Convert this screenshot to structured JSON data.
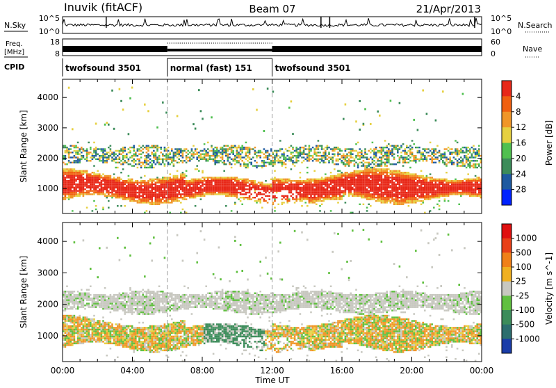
{
  "header": {
    "station": "Inuvik (fitACF)",
    "beam": "Beam 07",
    "date": "21/Apr/2013"
  },
  "top_panels": {
    "nsky_label": "N.Sky",
    "nsearch_label": "N.Search",
    "nsky_ticks_left": [
      "10^5",
      "10^0"
    ],
    "nsky_ticks_right": [
      "10^5",
      "10^0"
    ],
    "freq_label_line1": "Freq.",
    "freq_label_line2": "[MHz]",
    "freq_ticks": [
      "18",
      "8"
    ],
    "nave_label": "Nave",
    "nave_ticks": [
      "60",
      "0"
    ],
    "cpid_label": "CPID",
    "cpid_segments": [
      {
        "label": "twofsound 3501",
        "start_h": 0,
        "end_h": 6
      },
      {
        "label": "normal (fast) 151",
        "start_h": 6,
        "end_h": 12
      },
      {
        "label": "twofsound 3501",
        "start_h": 12,
        "end_h": 24
      }
    ]
  },
  "chart_data": [
    {
      "type": "heatmap",
      "title": "",
      "xlabel": "Time UT",
      "ylabel": "Slant Range [km]",
      "xlim_hours": [
        0,
        24
      ],
      "ylim": [
        180,
        4600
      ],
      "x_ticks": [
        "00:00",
        "04:00",
        "08:00",
        "12:00",
        "16:00",
        "20:00",
        "00:00"
      ],
      "x_tick_hours": [
        0,
        4,
        8,
        12,
        16,
        20,
        24
      ],
      "y_ticks": [
        1000,
        2000,
        3000,
        4000
      ],
      "colorbar_label": "Power [dB]",
      "colorbar_ticks": [
        "4",
        "8",
        "12",
        "16",
        "20",
        "24",
        "28"
      ],
      "colorbar_colors": [
        "#0022ff",
        "#1e5aa0",
        "#3c8c5a",
        "#50c050",
        "#e6d040",
        "#f09628",
        "#f06010",
        "#e82818"
      ],
      "description_features": {
        "main_band_range_km": [
          500,
          1500
        ],
        "secondary_band_range_km": [
          1800,
          2400
        ],
        "sparse_scatter_range_km": [
          2500,
          4400
        ]
      }
    },
    {
      "type": "heatmap",
      "title": "",
      "xlabel": "Time UT",
      "ylabel": "Slant Range [km]",
      "xlim_hours": [
        0,
        24
      ],
      "ylim": [
        180,
        4600
      ],
      "x_ticks": [
        "00:00",
        "04:00",
        "08:00",
        "12:00",
        "16:00",
        "20:00",
        "00:00"
      ],
      "x_tick_hours": [
        0,
        4,
        8,
        12,
        16,
        20,
        24
      ],
      "y_ticks": [
        1000,
        2000,
        3000,
        4000
      ],
      "colorbar_label": "Velocity [m s^-1]",
      "colorbar_ticks": [
        "1000",
        "500",
        "100",
        "25",
        "-25",
        "-100",
        "-500",
        "-1000"
      ],
      "colorbar_colors": [
        "#1a3ca8",
        "#2c6e6e",
        "#3c8c5a",
        "#60c040",
        "#c8c8c0",
        "#f0b020",
        "#f08018",
        "#e84018",
        "#e01010"
      ]
    }
  ]
}
